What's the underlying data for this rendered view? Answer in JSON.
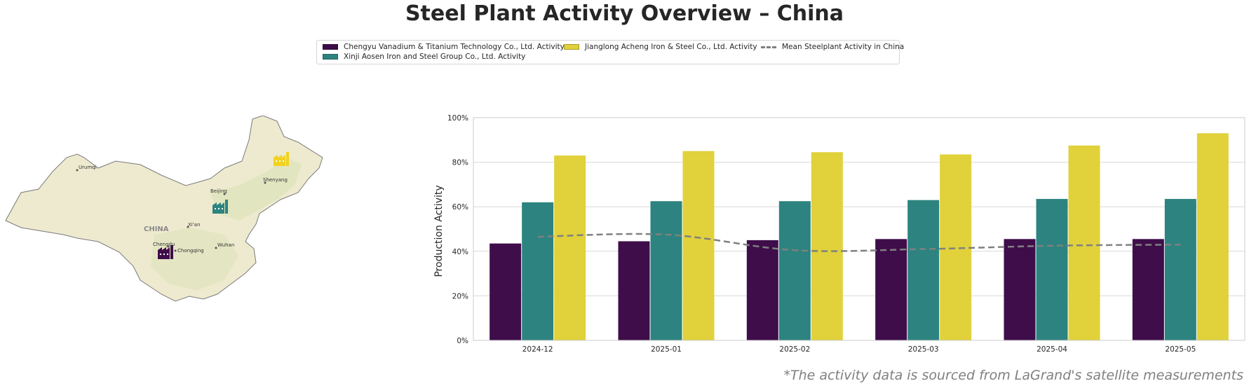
{
  "title": "Steel Plant Activity Overview – China",
  "legend": {
    "series": [
      {
        "label": "Chengyu Vanadium & Titanium Technology Co., Ltd. Activity",
        "color": "#3f0d4a"
      },
      {
        "label": "Xinji Aosen Iron and Steel Group Co., Ltd. Activity",
        "color": "#2d837f"
      },
      {
        "label": "Jianglong Acheng Iron & Steel Co., Ltd. Activity",
        "color": "#e1d13b"
      },
      {
        "label": "Mean Steelplant Activity in China",
        "color": "#808080"
      }
    ]
  },
  "map": {
    "country_label": "CHINA",
    "cities": [
      "Urumqi",
      "Beijing",
      "Shenyang",
      "Xi'an",
      "Chengdu",
      "Chongqing",
      "Wuhan"
    ],
    "land_color": "#eeead0",
    "plant_icons": [
      {
        "name": "factory-icon",
        "color": "#3f0d4a"
      },
      {
        "name": "factory-icon",
        "color": "#2d837f"
      },
      {
        "name": "factory-icon",
        "color": "#f2d21e"
      }
    ]
  },
  "chart_data": {
    "type": "bar",
    "categories": [
      "2024-12",
      "2025-01",
      "2025-02",
      "2025-03",
      "2025-04",
      "2025-05"
    ],
    "series": [
      {
        "name": "Chengyu Vanadium & Titanium Technology Co., Ltd. Activity",
        "color": "#3f0d4a",
        "values": [
          43.5,
          44.5,
          45,
          45.5,
          45.5,
          45.5
        ]
      },
      {
        "name": "Xinji Aosen Iron and Steel Group Co., Ltd. Activity",
        "color": "#2d837f",
        "values": [
          62,
          62.5,
          62.5,
          63,
          63.5,
          63.5
        ]
      },
      {
        "name": "Jianglong Acheng Iron & Steel Co., Ltd. Activity",
        "color": "#e1d13b",
        "values": [
          83,
          85,
          84.5,
          83.5,
          87.5,
          93
        ]
      }
    ],
    "line": {
      "name": "Mean Steelplant Activity in China",
      "type": "dashed",
      "color": "#808080",
      "values": [
        46.5,
        47.5,
        40.5,
        41,
        42.5,
        43
      ]
    },
    "ylabel": "Production Activity",
    "xlabel": "",
    "ylim": [
      0,
      100
    ],
    "yticks": [
      "0%",
      "20%",
      "40%",
      "60%",
      "80%",
      "100%"
    ],
    "grid": true,
    "legend": "top-center"
  },
  "footnote": "*The activity data is sourced from LaGrand's satellite measurements"
}
